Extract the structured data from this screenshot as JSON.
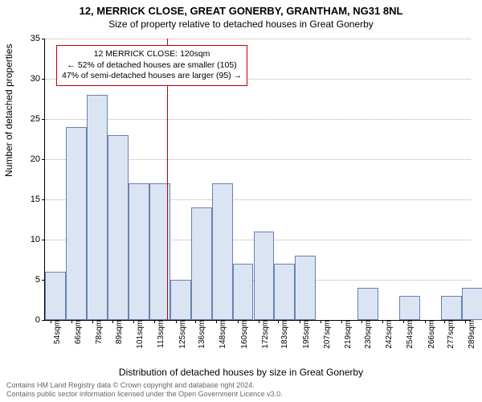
{
  "title": "12, MERRICK CLOSE, GREAT GONERBY, GRANTHAM, NG31 8NL",
  "subtitle": "Size of property relative to detached houses in Great Gonerby",
  "ylabel": "Number of detached properties",
  "xlabel": "Distribution of detached houses by size in Great Gonerby",
  "chart": {
    "type": "histogram",
    "ylim": [
      0,
      35
    ],
    "ytick_step": 5,
    "yticks": [
      0,
      5,
      10,
      15,
      20,
      25,
      30,
      35
    ],
    "x_min_sqm": 51,
    "x_max_sqm": 292,
    "x_tick_labels": [
      "54sqm",
      "66sqm",
      "78sqm",
      "89sqm",
      "101sqm",
      "113sqm",
      "125sqm",
      "136sqm",
      "148sqm",
      "160sqm",
      "172sqm",
      "183sqm",
      "195sqm",
      "207sqm",
      "219sqm",
      "230sqm",
      "242sqm",
      "254sqm",
      "266sqm",
      "277sqm",
      "289sqm"
    ],
    "x_tick_sqm": [
      54,
      66,
      78,
      89,
      101,
      113,
      125,
      136,
      148,
      160,
      172,
      183,
      195,
      207,
      219,
      230,
      242,
      254,
      266,
      277,
      289
    ],
    "bar_start_sqm": [
      51,
      62.8,
      74.6,
      86.4,
      98.2,
      110,
      121.8,
      133.6,
      145.4,
      157.2,
      169,
      180.8,
      192.6,
      204.4,
      216.2,
      228,
      239.8,
      251.6,
      263.4,
      275.2,
      287
    ],
    "bar_width_sqm": 11.8,
    "values": [
      6,
      24,
      28,
      23,
      17,
      17,
      5,
      14,
      17,
      7,
      11,
      7,
      8,
      0,
      0,
      4,
      0,
      3,
      0,
      3,
      4
    ],
    "bar_fill": "#dbe4f2",
    "bar_border": "#6a82b0",
    "background_color": "#ffffff",
    "grid_color": "#b0b0b0",
    "reference_line_sqm": 120,
    "reference_line_color": "#c00000"
  },
  "annotation": {
    "line1": "12 MERRICK CLOSE: 120sqm",
    "line2": "← 52% of detached houses are smaller (105)",
    "line3": "47% of semi-detached houses are larger (95) →",
    "border_color": "#c00000"
  },
  "footer": {
    "line1": "Contains HM Land Registry data © Crown copyright and database right 2024.",
    "line2": "Contains public sector information licensed under the Open Government Licence v3.0."
  }
}
